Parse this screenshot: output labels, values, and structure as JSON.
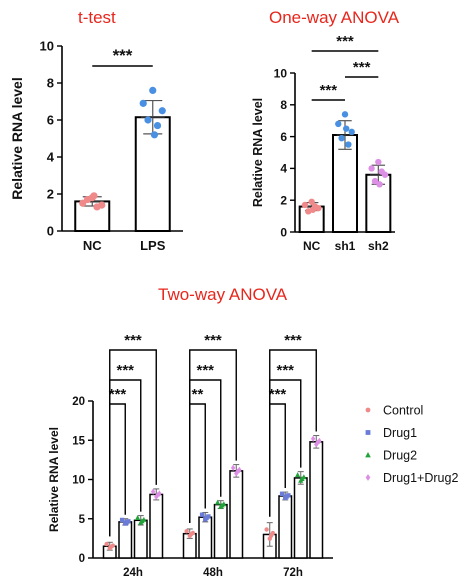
{
  "headings": {
    "ttest": "t-test",
    "oneway": "One-way ANOVA",
    "twoway": "Two-way ANOVA"
  },
  "colors": {
    "heading": "#e8261c",
    "nc": "#f08a8a",
    "lps": "#4a90e2",
    "sh1": "#4a90e2",
    "sh2": "#dd8fe6",
    "control": "#f08a8a",
    "drug1": "#6a7bd8",
    "drug2": "#22a33a",
    "drug1drug2": "#dd8fe6"
  },
  "chart_data": [
    {
      "type": "bar",
      "title": "t-test",
      "ylabel": "Relative RNA level",
      "xlabel": "",
      "ylim": [
        0,
        10
      ],
      "yticks": [
        0,
        2,
        4,
        6,
        8,
        10
      ],
      "categories": [
        "NC",
        "LPS"
      ],
      "values": [
        1.6,
        6.15
      ],
      "errors": [
        0.25,
        0.9
      ],
      "points": [
        [
          1.8,
          1.5,
          1.4,
          1.7,
          1.3,
          1.9
        ],
        [
          7.6,
          6.9,
          6.5,
          6.0,
          5.7,
          5.2
        ]
      ],
      "point_colors": [
        "nc",
        "lps"
      ],
      "significance": [
        {
          "from": "NC",
          "to": "LPS",
          "label": "***"
        }
      ]
    },
    {
      "type": "bar",
      "title": "One-way ANOVA",
      "ylabel": "Relative RNA level",
      "xlabel": "",
      "ylim": [
        0,
        10
      ],
      "yticks": [
        0,
        2,
        4,
        6,
        8,
        10
      ],
      "categories": [
        "NC",
        "sh1",
        "sh2"
      ],
      "values": [
        1.6,
        6.1,
        3.6
      ],
      "errors": [
        0.25,
        0.9,
        0.6
      ],
      "points": [
        [
          1.9,
          1.7,
          1.5,
          1.3,
          1.6,
          1.4
        ],
        [
          7.4,
          6.8,
          6.3,
          5.9,
          5.5,
          6.5
        ],
        [
          4.4,
          4.0,
          3.6,
          3.2,
          3.8,
          3.0
        ]
      ],
      "point_colors": [
        "nc",
        "sh1",
        "sh2"
      ],
      "significance": [
        {
          "from": "NC",
          "to": "sh1",
          "label": "***"
        },
        {
          "from": "sh1",
          "to": "sh2",
          "label": "***"
        },
        {
          "from": "NC",
          "to": "sh2",
          "label": "***"
        }
      ]
    },
    {
      "type": "bar",
      "title": "Two-way ANOVA",
      "ylabel": "Relative RNA level",
      "xlabel": "",
      "ylim": [
        0,
        20
      ],
      "yticks": [
        0,
        5,
        10,
        15,
        20
      ],
      "categories": [
        "24h",
        "48h",
        "72h"
      ],
      "series": [
        {
          "name": "Control",
          "values": [
            1.5,
            3.1,
            3.0
          ],
          "errors": [
            0.5,
            0.6,
            1.5
          ],
          "marker": "circle",
          "color_key": "control"
        },
        {
          "name": "Drug1",
          "values": [
            4.6,
            5.2,
            7.9
          ],
          "errors": [
            0.4,
            0.6,
            0.5
          ],
          "marker": "square",
          "color_key": "drug1"
        },
        {
          "name": "Drug2",
          "values": [
            4.8,
            6.8,
            10.2
          ],
          "errors": [
            0.6,
            0.5,
            0.8
          ],
          "marker": "triangle",
          "color_key": "drug2"
        },
        {
          "name": "Drug1+Drug2",
          "values": [
            8.1,
            11.1,
            14.8
          ],
          "errors": [
            0.7,
            0.8,
            0.8
          ],
          "marker": "diamond",
          "color_key": "drug1drug2"
        }
      ],
      "significance": [
        {
          "group": "24h",
          "labels": [
            "***",
            "***",
            "***"
          ]
        },
        {
          "group": "48h",
          "labels": [
            "**",
            "***",
            "***"
          ]
        },
        {
          "group": "72h",
          "labels": [
            "***",
            "***",
            "***"
          ]
        }
      ],
      "legend": "right"
    }
  ]
}
